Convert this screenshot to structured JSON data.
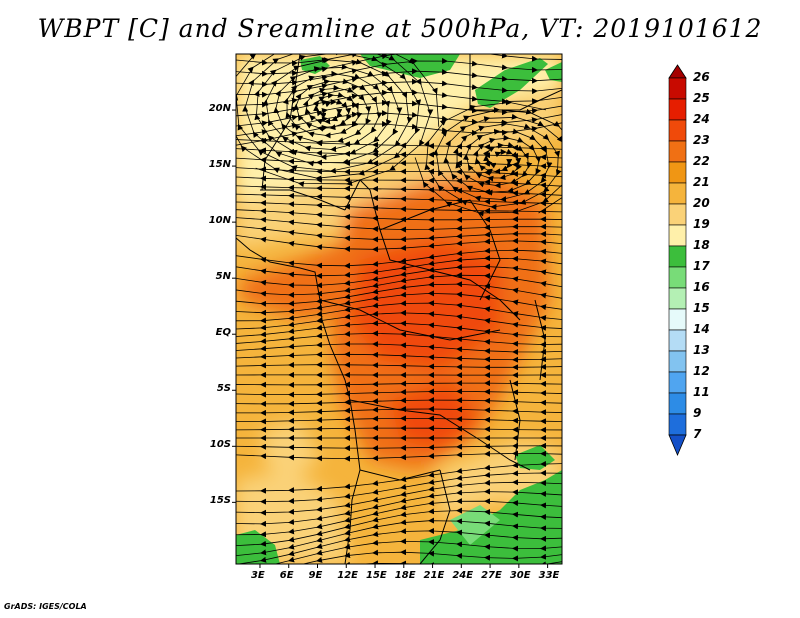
{
  "title": "WBPT [C] and Sreamline at 500hPa, VT: 2019101612",
  "credit": "GrADS: IGES/COLA",
  "lat_labels": [
    "20N",
    "15N",
    "10N",
    "5N",
    "EQ",
    "5S",
    "10S",
    "15S"
  ],
  "lat_values": [
    20,
    15,
    10,
    5,
    0,
    -5,
    -10,
    -15
  ],
  "lon_labels": [
    "3E",
    "6E",
    "9E",
    "12E",
    "15E",
    "18E",
    "21E",
    "24E",
    "27E",
    "30E",
    "33E"
  ],
  "lon_values": [
    3,
    6,
    9,
    12,
    15,
    18,
    21,
    24,
    27,
    30,
    33
  ],
  "map_extent": {
    "lon_min": 0.5,
    "lon_max": 34.5,
    "lat_min": -20.5,
    "lat_max": 25
  },
  "colorbar": {
    "labels": [
      "26",
      "25",
      "24",
      "23",
      "22",
      "21",
      "20",
      "19",
      "18",
      "17",
      "16",
      "15",
      "14",
      "13",
      "12",
      "11",
      "9",
      "7"
    ],
    "colors": [
      "#a50000",
      "#c80a00",
      "#e61e00",
      "#f04a0a",
      "#f07014",
      "#f09614",
      "#f5b43c",
      "#fad278",
      "#fff0aa",
      "#3cbe3c",
      "#78dc78",
      "#b4f0b4",
      "#e6fafa",
      "#b4dcf5",
      "#82c3f0",
      "#50a5f0",
      "#2d8ce6",
      "#1e6edc",
      "#1450c8"
    ]
  }
}
